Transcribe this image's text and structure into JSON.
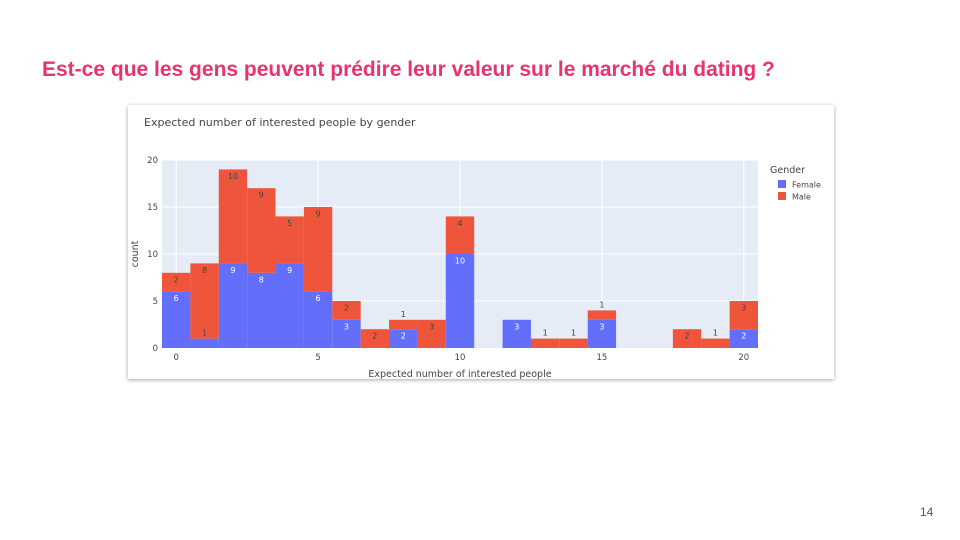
{
  "slide": {
    "title": "Est-ce que les gens peuvent prédire leur valeur sur le marché du dating ?",
    "page_number": "14"
  },
  "colors": {
    "female": "#636efa",
    "male": "#ef553b",
    "plot_bg": "#e5ecf6",
    "title": "#e8336f"
  },
  "chart_data": {
    "type": "bar",
    "barmode": "stack",
    "title": "Expected number of interested people by gender",
    "xlabel": "Expected number of interested people",
    "ylabel": "count",
    "xlim": [
      -0.5,
      20.5
    ],
    "ylim": [
      0,
      20
    ],
    "xticks": [
      0,
      5,
      10,
      15,
      20
    ],
    "yticks": [
      0,
      5,
      10,
      15,
      20
    ],
    "grid": true,
    "legend": {
      "title": "Gender",
      "position": "top-right"
    },
    "x": [
      0,
      1,
      2,
      3,
      4,
      5,
      6,
      7,
      8,
      9,
      10,
      11,
      12,
      13,
      14,
      15,
      16,
      17,
      18,
      19,
      20
    ],
    "series": [
      {
        "name": "Female",
        "color": "#636efa",
        "values": [
          6,
          1,
          9,
          8,
          9,
          6,
          3,
          0,
          2,
          0,
          10,
          0,
          3,
          0,
          0,
          3,
          0,
          0,
          0,
          0,
          2
        ]
      },
      {
        "name": "Male",
        "color": "#ef553b",
        "values": [
          2,
          8,
          10,
          9,
          5,
          9,
          2,
          2,
          1,
          3,
          4,
          0,
          0,
          1,
          1,
          1,
          0,
          0,
          2,
          1,
          3
        ]
      }
    ]
  }
}
